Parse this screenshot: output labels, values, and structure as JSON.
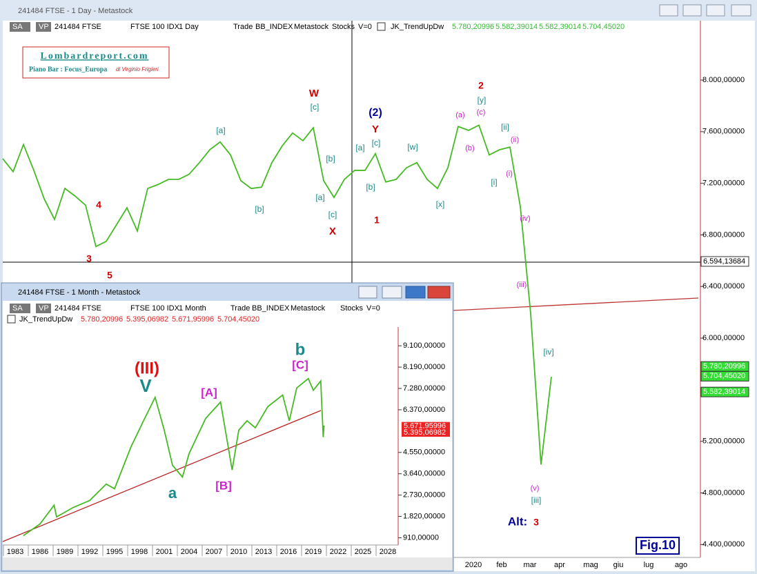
{
  "main_window": {
    "title": "241484 FTSE - 1 Day - Metastock",
    "toolbar": [
      "SA",
      "VP",
      "241484 FTSE",
      "FTSE 100 IDX",
      "1 Day",
      "Trade",
      "BB_INDEX",
      "Metastock",
      "Stocks",
      "V=0"
    ],
    "indicator": "JK_TrendUpDw",
    "indicator_values": [
      "5.780,20996",
      "5.582,39014",
      "5.582,39014",
      "5.704,45020"
    ]
  },
  "logo": {
    "title": "Lombardreport.com",
    "subtitle": "Piano Bar : Focus_Europa",
    "author": "di Virginio Frigieri"
  },
  "inset_window": {
    "title": "241484 FTSE - 1 Month - Metastock",
    "toolbar": [
      "SA",
      "VP",
      "241484 FTSE",
      "FTSE 100 IDX",
      "1 Month",
      "Trade",
      "BB_INDEX",
      "Metastock",
      "Stocks",
      "V=0"
    ],
    "indicator": "JK_TrendUpDw",
    "indicator_values": [
      "5.780,20996",
      "5.395,06982",
      "5.671,95996",
      "5.704,45020"
    ]
  },
  "chart_data": [
    {
      "type": "line",
      "color": "#44bb22",
      "values": [
        7390,
        7290,
        7500,
        7300,
        7080,
        6920,
        7160,
        7100,
        7030,
        6710,
        6750,
        6880,
        7010,
        6830,
        7160,
        7190,
        7230,
        7230,
        7270,
        7360,
        7460,
        7520,
        7420,
        7220,
        7160,
        7170,
        7360,
        7490,
        7590,
        7530,
        7630,
        7220,
        7090,
        7230,
        7300,
        7300,
        7430,
        7210,
        7230,
        7320,
        7360,
        7230,
        7160,
        7320,
        7640,
        7610,
        7650,
        7420,
        7460,
        7480,
        7020,
        6190,
        5020,
        5700
      ],
      "ylim": [
        4300,
        8460
      ],
      "yticks": [
        {
          "value": 8000,
          "label": "8.000,00000"
        },
        {
          "value": 7600,
          "label": "7.600,00000"
        },
        {
          "value": 7200,
          "label": "7.200,00000"
        },
        {
          "value": 6800,
          "label": "6.800,00000"
        },
        {
          "value": 6400,
          "label": "6.400,00000"
        },
        {
          "value": 6000,
          "label": "6.000,00000"
        },
        {
          "value": 5200,
          "label": "5.200,00000"
        },
        {
          "value": 4800,
          "label": "4.800,00000"
        },
        {
          "value": 4400,
          "label": "4.400,00000"
        }
      ],
      "xtick_labels": [
        "2020",
        "feb",
        "mar",
        "apr",
        "mag",
        "giu",
        "lug",
        "ago"
      ],
      "price_labels": [
        {
          "value": 6594.13684,
          "label": "6.594,13684",
          "color": "#ffffff"
        },
        {
          "value": 5780.20996,
          "label": "5.780,20996",
          "color": "#33dd33"
        },
        {
          "value": 5704.4502,
          "label": "5.704,45020",
          "color": "#33dd33"
        },
        {
          "value": 5582.39014,
          "label": "5.582,39014",
          "color": "#33dd33"
        }
      ],
      "annotations": [
        {
          "text": "W",
          "color": "#cc0000"
        },
        {
          "text": "[c]",
          "color": "#1a8a8a"
        },
        {
          "text": "(2)",
          "color": "#000099"
        },
        {
          "text": "Y",
          "color": "#cc0000"
        },
        {
          "text": "[c]",
          "color": "#1a8a8a"
        },
        {
          "text": "[a]",
          "color": "#1a8a8a"
        },
        {
          "text": "[b]",
          "color": "#1a8a8a"
        },
        {
          "text": "[a]",
          "color": "#1a8a8a"
        },
        {
          "text": "[b]",
          "color": "#1a8a8a"
        },
        {
          "text": "[a]",
          "color": "#1a8a8a"
        },
        {
          "text": "[c]",
          "color": "#1a8a8a"
        },
        {
          "text": "X",
          "color": "#cc0000"
        },
        {
          "text": "[b]",
          "color": "#1a8a8a"
        },
        {
          "text": "1",
          "color": "#cc0000"
        },
        {
          "text": "[w]",
          "color": "#1a8a8a"
        },
        {
          "text": "[x]",
          "color": "#1a8a8a"
        },
        {
          "text": "2",
          "color": "#cc0000"
        },
        {
          "text": "[y]",
          "color": "#1a8a8a"
        },
        {
          "text": "(a)",
          "color": "#cc22cc"
        },
        {
          "text": "(c)",
          "color": "#cc22cc"
        },
        {
          "text": "(b)",
          "color": "#cc22cc"
        },
        {
          "text": "[ii]",
          "color": "#1a8a8a"
        },
        {
          "text": "(ii)",
          "color": "#cc22cc"
        },
        {
          "text": "(i)",
          "color": "#cc22cc"
        },
        {
          "text": "[i]",
          "color": "#1a8a8a"
        },
        {
          "text": "(iv)",
          "color": "#cc22cc"
        },
        {
          "text": "(iii)",
          "color": "#cc22cc"
        },
        {
          "text": "[iv]",
          "color": "#1a8a8a"
        },
        {
          "text": "(v)",
          "color": "#cc22cc"
        },
        {
          "text": "[iii]",
          "color": "#1a8a8a"
        },
        {
          "text": "4",
          "color": "#cc0000"
        },
        {
          "text": "3",
          "color": "#cc0000"
        },
        {
          "text": "5",
          "color": "#cc0000"
        },
        {
          "text": "Alt:",
          "color": "#000099"
        },
        {
          "text": "3",
          "color": "#cc0000"
        },
        {
          "text": "Fig.10",
          "color": "#000099"
        }
      ]
    },
    {
      "type": "line",
      "color": "#44bb22",
      "x": [
        1984,
        1986,
        1987.7,
        1988,
        1990,
        1992,
        1994,
        1995,
        1997,
        1998.5,
        1999.9,
        2001,
        2002,
        2003.2,
        2004,
        2006,
        2007.8,
        2009.2,
        2010,
        2011,
        2012,
        2013.5,
        2015.3,
        2016.1,
        2017,
        2018.4,
        2019,
        2019.9,
        2020.2,
        2020.3
      ],
      "values": [
        1000,
        1500,
        2300,
        1800,
        2200,
        2500,
        3200,
        3000,
        4800,
        5900,
        6900,
        5500,
        4000,
        3500,
        4500,
        6000,
        6700,
        3800,
        5500,
        5900,
        5600,
        6500,
        7000,
        5900,
        7300,
        7700,
        7200,
        7600,
        5200,
        5700
      ],
      "xlim": [
        1981.5,
        2029.25
      ],
      "xticks": [
        1983,
        1986,
        1989,
        1992,
        1995,
        1998,
        2001,
        2004,
        2007,
        2010,
        2013,
        2016,
        2019,
        2022,
        2025,
        2028
      ],
      "ylim": [
        600,
        9900
      ],
      "yticks": [
        {
          "value": 9100,
          "label": "9.100,00000"
        },
        {
          "value": 8190,
          "label": "8.190,00000"
        },
        {
          "value": 7280,
          "label": "7.280,00000"
        },
        {
          "value": 6370,
          "label": "6.370,00000"
        },
        {
          "value": 4550,
          "label": "4.550,00000"
        },
        {
          "value": 3640,
          "label": "3.640,00000"
        },
        {
          "value": 2730,
          "label": "2.730,00000"
        },
        {
          "value": 1820,
          "label": "1.820,00000"
        },
        {
          "value": 910,
          "label": "910,00000"
        }
      ],
      "price_labels": [
        {
          "value": 5671.95996,
          "label": "5.671,95996",
          "color": "#ee2222"
        },
        {
          "value": 5395.06982,
          "label": "5.395,06982",
          "color": "#ee2222"
        }
      ],
      "annotations": [
        {
          "text": "(III)",
          "color": "#dd1111"
        },
        {
          "text": "V",
          "color": "#1a8a8a"
        },
        {
          "text": "[A]",
          "color": "#cc22cc"
        },
        {
          "text": "a",
          "color": "#1a8a8a"
        },
        {
          "text": "[B]",
          "color": "#cc22cc"
        },
        {
          "text": "b",
          "color": "#1a8a8a"
        },
        {
          "text": "[C]",
          "color": "#cc22cc"
        }
      ]
    }
  ]
}
